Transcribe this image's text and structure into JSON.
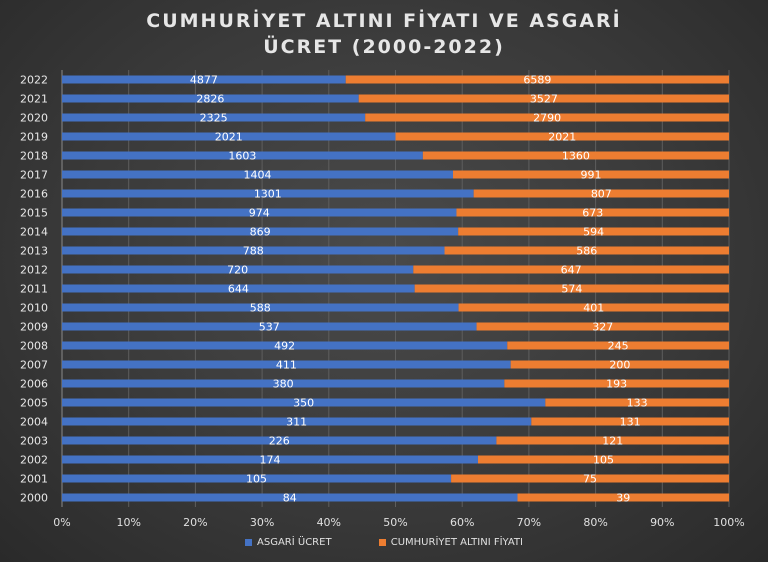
{
  "chart_data": {
    "type": "bar",
    "orientation": "horizontal",
    "stacking": "percent",
    "title": "CUMHURİYET ALTINI FİYATI VE ASGARİ ÜCRET (2000-2022)",
    "title_lines": [
      "CUMHURİYET ALTINI FİYATI VE ASGARİ",
      "ÜCRET (2000-2022)"
    ],
    "categories": [
      "2000",
      "2001",
      "2002",
      "2003",
      "2004",
      "2005",
      "2006",
      "2007",
      "2008",
      "2009",
      "2010",
      "2011",
      "2012",
      "2013",
      "2014",
      "2015",
      "2016",
      "2017",
      "2018",
      "2019",
      "2020",
      "2021",
      "2022"
    ],
    "series": [
      {
        "name": "ASGARİ ÜCRET",
        "color": "#4472C4",
        "values": [
          84,
          105,
          174,
          226,
          311,
          350,
          380,
          411,
          492,
          537,
          588,
          644,
          720,
          788,
          869,
          974,
          1301,
          1404,
          1603,
          2021,
          2325,
          2826,
          4877
        ]
      },
      {
        "name": "CUMHURİYET ALTINI FİYATI",
        "color": "#ED7D31",
        "values": [
          39,
          75,
          105,
          121,
          131,
          133,
          193,
          200,
          245,
          327,
          401,
          574,
          647,
          586,
          594,
          673,
          807,
          991,
          1360,
          2021,
          2790,
          3527,
          6589
        ]
      }
    ],
    "x_ticks": [
      "0%",
      "10%",
      "20%",
      "30%",
      "40%",
      "50%",
      "60%",
      "70%",
      "80%",
      "90%",
      "100%"
    ],
    "xlim": [
      0,
      100
    ],
    "grid": true,
    "legend": "bottom"
  }
}
